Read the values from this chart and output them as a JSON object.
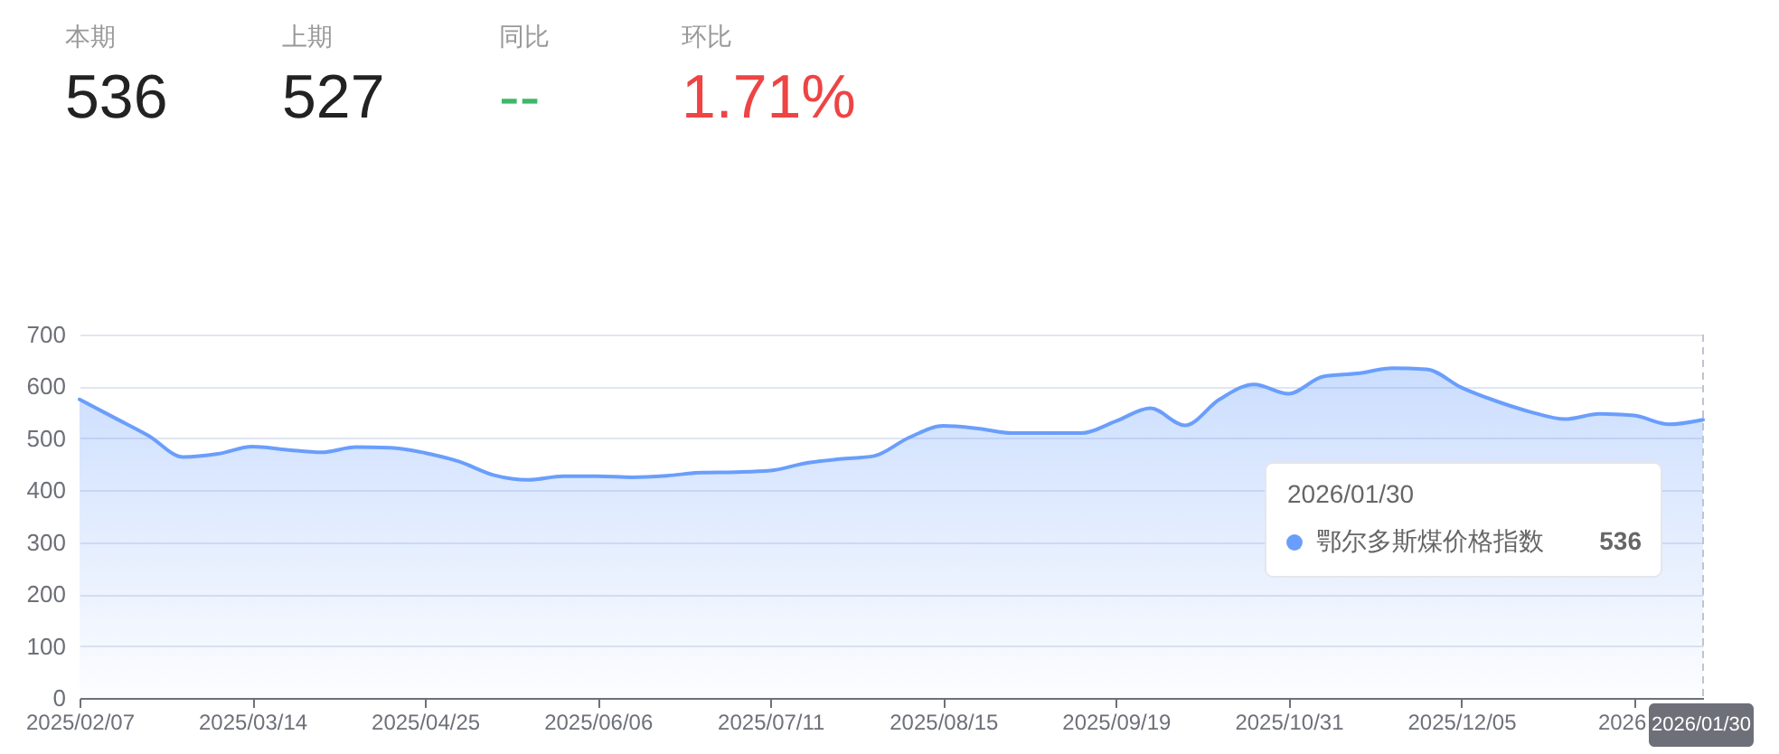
{
  "chart_data": [
    {
      "type": "other",
      "categories": [
        "本期",
        "上期",
        "同比",
        "环比"
      ],
      "value_labels": [
        "536",
        "527",
        "--",
        "1.71%"
      ],
      "colors": [
        "#222222",
        "#222222",
        "#3cb868",
        "#ee4444"
      ]
    },
    {
      "type": "area",
      "categories": [
        "2025/02/07",
        null,
        null,
        null,
        null,
        "2025/03/14",
        null,
        null,
        null,
        null,
        "2025/04/25",
        null,
        null,
        null,
        null,
        "2025/06/06",
        null,
        null,
        null,
        null,
        "2025/07/11",
        null,
        null,
        null,
        null,
        "2025/08/15",
        null,
        null,
        null,
        null,
        "2025/09/19",
        null,
        null,
        null,
        null,
        "2025/10/31",
        null,
        null,
        null,
        null,
        "2025/12/05",
        null,
        null,
        null,
        null,
        "2026",
        null,
        "2026/01/30"
      ],
      "series": [
        {
          "name": "鄂尔多斯煤价格指数",
          "color": "#6a9efc",
          "values": [
            575,
            540,
            505,
            464,
            470,
            484,
            478,
            473,
            483,
            482,
            472,
            455,
            429,
            420,
            427,
            427,
            425,
            428,
            434,
            435,
            438,
            452,
            460,
            466,
            501,
            524,
            519,
            510,
            510,
            510,
            533,
            558,
            525,
            575,
            604,
            586,
            619,
            625,
            635,
            633,
            598,
            572,
            551,
            537,
            547,
            544,
            527,
            536
          ]
        }
      ],
      "ylim": [
        0,
        700
      ],
      "yticks": [
        0,
        100,
        200,
        300,
        400,
        500,
        600,
        700
      ],
      "grid": "y",
      "legend": "right",
      "legend_title": "2026/01/30",
      "ref_lines": [
        {
          "axis": "x",
          "value": "2026/01/30",
          "line_style": "dashed",
          "color": "#c0c4d0"
        }
      ],
      "annotations": [
        "536"
      ]
    }
  ]
}
